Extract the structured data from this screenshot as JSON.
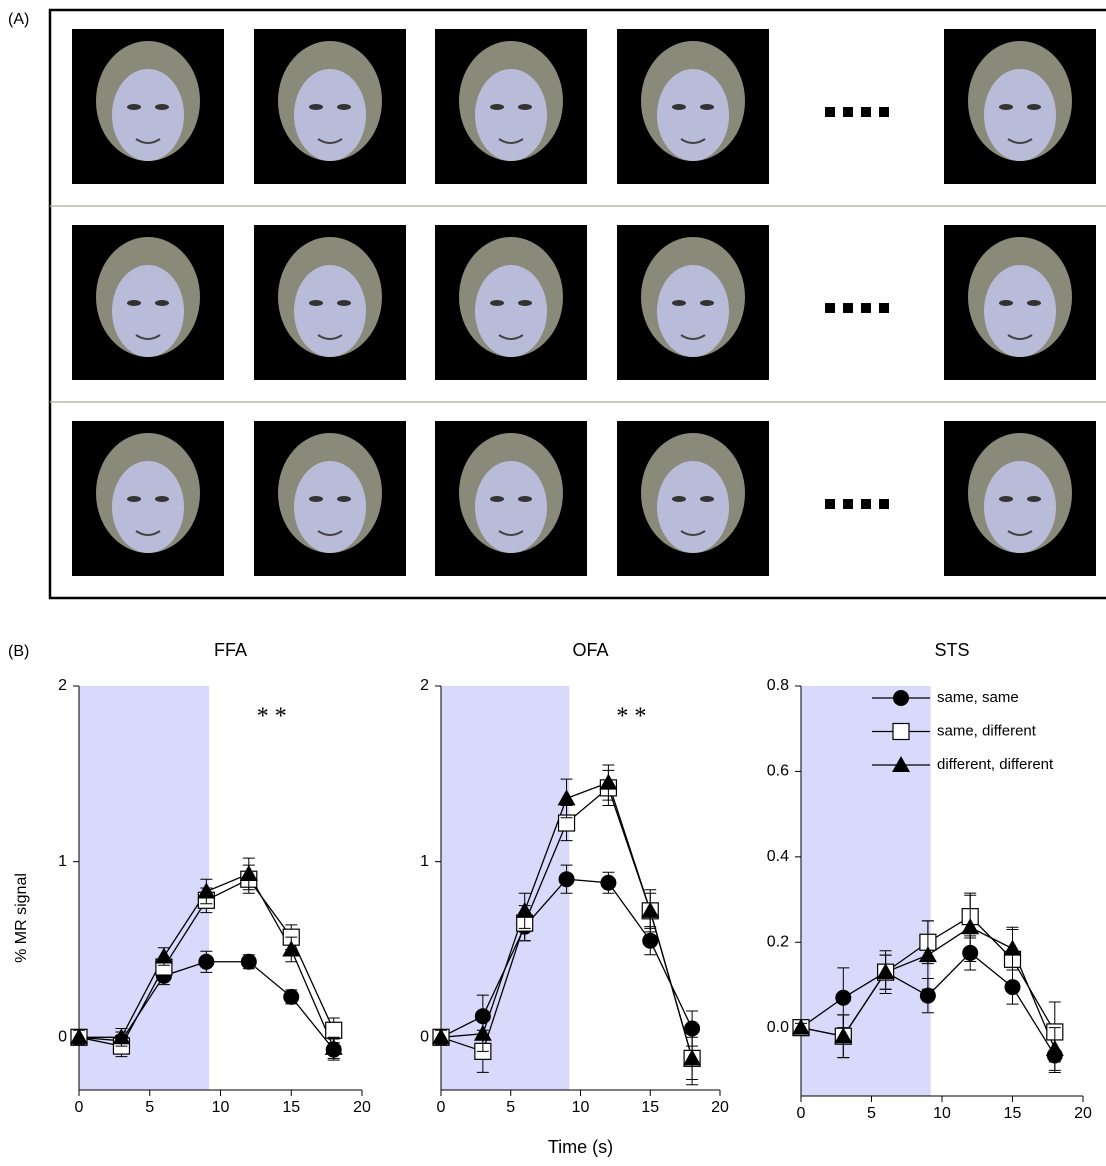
{
  "panel_labels": [
    "(A)",
    "(B)"
  ],
  "chart_data": [
    {
      "type": "line",
      "title": "FFA",
      "ylabel": "% MR signal",
      "annotation": "* *",
      "x": [
        0,
        3,
        6,
        9,
        12,
        15,
        18
      ],
      "xlim": [
        0,
        20
      ],
      "xticks": [
        0,
        5,
        10,
        15,
        20
      ],
      "ylim": [
        -0.3,
        2
      ],
      "yticks": [
        0,
        1,
        2
      ],
      "shade_x": [
        0,
        9.2
      ],
      "shade_color": "#d9d9fb",
      "series": [
        {
          "name": "same, same",
          "marker": "circle",
          "color": "#000000",
          "values": [
            0,
            -0.02,
            0.35,
            0.43,
            0.43,
            0.23,
            -0.07
          ],
          "errors": [
            0.04,
            0.05,
            0.05,
            0.06,
            0.04,
            0.04,
            0.06
          ]
        },
        {
          "name": "same, different",
          "marker": "square",
          "color": "#000000",
          "values": [
            0,
            -0.05,
            0.4,
            0.78,
            0.9,
            0.57,
            0.04
          ],
          "errors": [
            0.04,
            0.06,
            0.05,
            0.07,
            0.08,
            0.07,
            0.07
          ]
        },
        {
          "name": "different, different",
          "marker": "triangle",
          "color": "#000000",
          "values": [
            0,
            0,
            0.46,
            0.83,
            0.93,
            0.5,
            -0.06
          ],
          "errors": [
            0.04,
            0.05,
            0.05,
            0.07,
            0.09,
            0.07,
            0.06
          ]
        }
      ]
    },
    {
      "type": "line",
      "title": "OFA",
      "xlabel": "Time (s)",
      "annotation": "* *",
      "x": [
        0,
        3,
        6,
        9,
        12,
        15,
        18
      ],
      "xlim": [
        0,
        20
      ],
      "xticks": [
        0,
        5,
        10,
        15,
        20
      ],
      "ylim": [
        -0.3,
        2
      ],
      "yticks": [
        0,
        1,
        2
      ],
      "shade_x": [
        0,
        9.2
      ],
      "shade_color": "#d9d9fb",
      "series": [
        {
          "name": "same, same",
          "marker": "circle",
          "color": "#000000",
          "values": [
            0,
            0.12,
            0.63,
            0.9,
            0.88,
            0.55,
            0.05
          ],
          "errors": [
            0.04,
            0.12,
            0.08,
            0.08,
            0.06,
            0.08,
            0.1
          ]
        },
        {
          "name": "same, different",
          "marker": "square",
          "color": "#000000",
          "values": [
            0,
            -0.08,
            0.65,
            1.22,
            1.42,
            0.72,
            -0.12
          ],
          "errors": [
            0.04,
            0.12,
            0.1,
            0.1,
            0.1,
            0.12,
            0.15
          ]
        },
        {
          "name": "different, different",
          "marker": "triangle",
          "color": "#000000",
          "values": [
            0,
            0.02,
            0.72,
            1.36,
            1.45,
            0.72,
            -0.12
          ],
          "errors": [
            0.04,
            0.1,
            0.1,
            0.11,
            0.1,
            0.1,
            0.12
          ]
        }
      ]
    },
    {
      "type": "line",
      "title": "STS",
      "x": [
        0,
        3,
        6,
        9,
        12,
        15,
        18
      ],
      "xlim": [
        0,
        20
      ],
      "xticks": [
        0,
        5,
        10,
        15,
        20
      ],
      "ylim": [
        -0.16,
        0.8
      ],
      "yticks": [
        {
          "value": 0,
          "label": "0.0"
        },
        0.2,
        0.4,
        0.6,
        0.8
      ],
      "shade_x": [
        0,
        9.2
      ],
      "shade_color": "#d9d9fb",
      "legend": "upper right",
      "series": [
        {
          "name": "same, same",
          "marker": "circle",
          "color": "#000000",
          "values": [
            0,
            0.07,
            0.13,
            0.075,
            0.175,
            0.095,
            -0.065
          ],
          "errors": [
            0.01,
            0.07,
            0.04,
            0.04,
            0.04,
            0.04,
            0.04
          ]
        },
        {
          "name": "same, different",
          "marker": "square",
          "color": "#000000",
          "values": [
            0,
            -0.02,
            0.13,
            0.2,
            0.26,
            0.16,
            -0.01
          ],
          "errors": [
            0.01,
            0.05,
            0.04,
            0.05,
            0.05,
            0.07,
            0.07
          ]
        },
        {
          "name": "different, different",
          "marker": "triangle",
          "color": "#000000",
          "values": [
            0,
            -0.02,
            0.13,
            0.17,
            0.235,
            0.185,
            -0.05
          ],
          "errors": [
            0.01,
            0.05,
            0.05,
            0.08,
            0.08,
            0.05,
            0.05
          ]
        }
      ]
    }
  ]
}
